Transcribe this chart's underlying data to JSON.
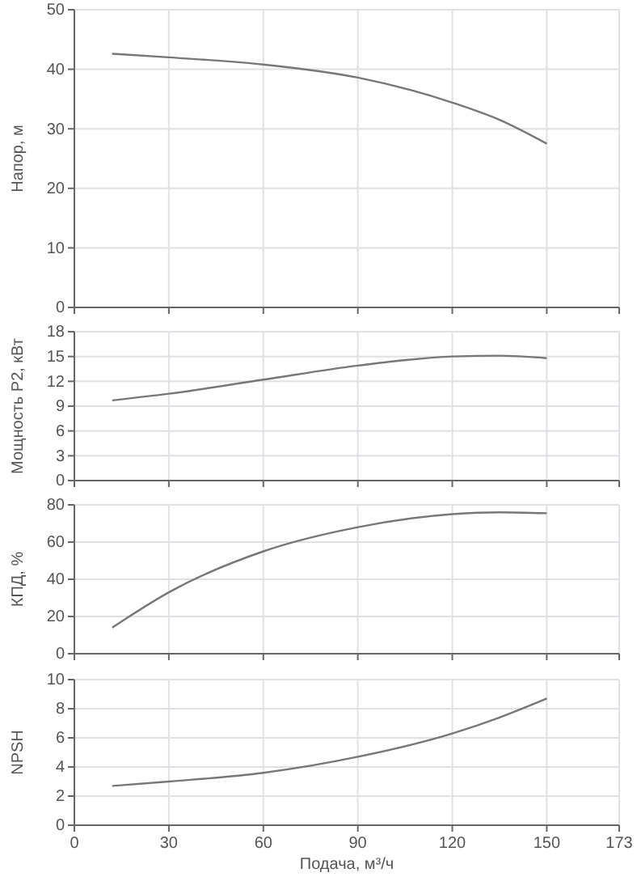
{
  "chart_data": [
    {
      "type": "line",
      "ylabel": "Напор, м",
      "x": [
        12,
        30,
        60,
        90,
        120,
        135,
        150
      ],
      "series": [
        {
          "color": "#777777",
          "values": [
            42.6,
            42.0,
            40.8,
            38.6,
            34.4,
            31.5,
            27.5
          ]
        }
      ],
      "xlim": [
        0,
        173
      ],
      "xticks": [
        0,
        30,
        60,
        90,
        120,
        150,
        173
      ],
      "ylim": [
        0,
        50
      ],
      "yticks": [
        0,
        10,
        20,
        30,
        40,
        50
      ],
      "grid": true,
      "tick_labels": "y",
      "marker": "none",
      "line_style": "solid"
    },
    {
      "type": "line",
      "ylabel": "Мощность P2, кВт",
      "x": [
        12,
        30,
        60,
        90,
        120,
        135,
        150
      ],
      "series": [
        {
          "color": "#777777",
          "values": [
            9.7,
            10.5,
            12.2,
            13.9,
            15.0,
            15.1,
            14.8
          ]
        }
      ],
      "xlim": [
        0,
        173
      ],
      "xticks": [
        0,
        30,
        60,
        90,
        120,
        150,
        173
      ],
      "ylim": [
        0,
        18
      ],
      "yticks": [
        0,
        3,
        6,
        9,
        12,
        15,
        18
      ],
      "grid": true,
      "tick_labels": "y",
      "marker": "none",
      "line_style": "solid"
    },
    {
      "type": "line",
      "ylabel": "КПД, %",
      "x": [
        12,
        30,
        60,
        90,
        120,
        135,
        150
      ],
      "series": [
        {
          "color": "#777777",
          "values": [
            14,
            33,
            55,
            68,
            75,
            76,
            75.5
          ]
        }
      ],
      "xlim": [
        0,
        173
      ],
      "xticks": [
        0,
        30,
        60,
        90,
        120,
        150,
        173
      ],
      "ylim": [
        0,
        80
      ],
      "yticks": [
        0,
        20,
        40,
        60,
        80
      ],
      "grid": true,
      "tick_labels": "y",
      "marker": "none",
      "line_style": "solid"
    },
    {
      "type": "line",
      "ylabel": "NPSH",
      "xlabel": "Подача, м³/ч",
      "x": [
        12,
        30,
        60,
        90,
        120,
        135,
        150
      ],
      "series": [
        {
          "color": "#777777",
          "values": [
            2.7,
            3.0,
            3.6,
            4.7,
            6.3,
            7.4,
            8.7
          ]
        }
      ],
      "xlim": [
        0,
        173
      ],
      "xticks": [
        0,
        30,
        60,
        90,
        120,
        150,
        173
      ],
      "ylim": [
        0,
        10
      ],
      "yticks": [
        0,
        2,
        4,
        6,
        8,
        10
      ],
      "grid": true,
      "marker": "none",
      "line_style": "solid"
    }
  ]
}
